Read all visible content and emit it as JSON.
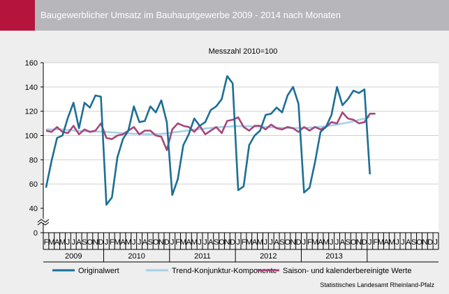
{
  "header": {
    "title": "Baugewerblicher Umsatz im Bauhauptgewerbe 2009 - 2014 nach Monaten"
  },
  "source": "Statistisches Landesamt Rheinland-Pfalz",
  "colors": {
    "header_bg": "#b7b7bb",
    "accent": "#b5143c",
    "original": "#1c6e95",
    "trend": "#a7cfe6",
    "seasonal": "#a6467c",
    "panel_bg": "#eeeeee"
  },
  "chart_data": {
    "type": "line",
    "title": "Messzahl 2010=100",
    "ylim": [
      0,
      160
    ],
    "yticks": [
      0,
      40,
      60,
      80,
      100,
      120,
      140,
      160
    ],
    "axis_break": [
      0,
      40
    ],
    "month_labels": [
      "F",
      "M",
      "A",
      "M",
      "J",
      "J",
      "A",
      "S",
      "O",
      "N",
      "D",
      "J",
      "F",
      "M",
      "A",
      "M",
      "J",
      "J",
      "A",
      "S",
      "O",
      "N",
      "D",
      "J",
      "F",
      "M",
      "A",
      "M",
      "J",
      "J",
      "A",
      "S",
      "O",
      "N",
      "D",
      "J",
      "F",
      "M",
      "A",
      "M",
      "J",
      "J",
      "A",
      "S",
      "O",
      "N",
      "D",
      "J",
      "F",
      "M",
      "A",
      "M",
      "J",
      "J",
      "A",
      "S",
      "O",
      "N",
      "D",
      "J",
      "F",
      "M",
      "A",
      "M",
      "J",
      "J",
      "A",
      "S",
      "O",
      "N",
      "D",
      "J"
    ],
    "years": [
      {
        "label": "2009",
        "start": 0,
        "end": 10
      },
      {
        "label": "2010",
        "start": 11,
        "end": 22
      },
      {
        "label": "2011",
        "start": 23,
        "end": 34
      },
      {
        "label": "2012",
        "start": 35,
        "end": 46
      },
      {
        "label": "2013",
        "start": 47,
        "end": 58
      }
    ],
    "series": [
      {
        "name": "Originalwert",
        "color": "#1c6e95",
        "values": [
          57,
          79,
          98,
          100,
          115,
          127,
          106,
          127,
          123,
          133,
          132,
          43,
          49,
          82,
          97,
          104,
          124,
          111,
          112,
          124,
          119,
          129,
          111,
          51,
          64,
          92,
          101,
          114,
          108,
          111,
          121,
          124,
          130,
          149,
          143,
          55,
          58,
          92,
          100,
          104,
          117,
          118,
          123,
          119,
          133,
          140,
          126,
          53,
          57,
          78,
          103,
          107,
          117,
          140,
          125,
          130,
          137,
          135,
          138,
          68
        ]
      },
      {
        "name": "Trend-Konjunktur-Komponente",
        "color": "#a7cfe6",
        "values": [
          105,
          105,
          105,
          105,
          104.6,
          104.2,
          103.8,
          103.5,
          103.3,
          103.2,
          103.3,
          103,
          102.6,
          102.3,
          102,
          101.8,
          101.5,
          101.3,
          101.1,
          101,
          101.1,
          101.4,
          101.8,
          102.4,
          103,
          103.6,
          104.2,
          104.8,
          105.3,
          105.8,
          106.2,
          106.6,
          107,
          107.3,
          107.5,
          107.7,
          107.8,
          107.6,
          107.4,
          107.2,
          107,
          106.8,
          106.6,
          106.4,
          106.3,
          106.2,
          106.2,
          106.3,
          106.5,
          106.8,
          107.2,
          107.7,
          108.3,
          109,
          109.8,
          110.7,
          111.7,
          112.8,
          114,
          115.3
        ]
      },
      {
        "name": "Saison- und kalenderbereinigte Werte",
        "color": "#a6467c",
        "values": [
          104,
          103,
          107,
          103,
          102,
          108,
          101,
          105,
          103,
          104,
          110,
          98,
          97,
          100,
          101,
          104,
          107,
          101,
          104,
          104,
          100,
          99,
          88,
          105,
          110,
          108,
          107,
          103,
          108,
          101,
          104,
          107,
          102,
          112,
          113,
          115,
          107,
          104,
          108,
          108,
          105,
          109,
          106,
          105,
          107,
          106,
          103,
          107,
          104,
          107,
          105,
          107,
          111,
          110,
          119,
          114,
          113,
          110,
          111,
          118,
          118
        ]
      }
    ]
  }
}
